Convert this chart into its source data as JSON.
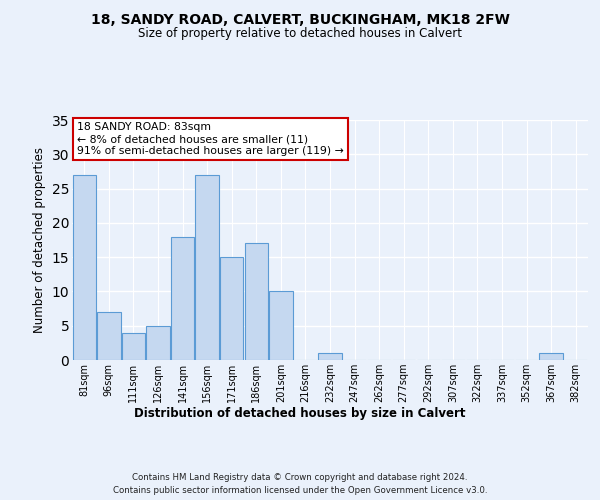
{
  "title1": "18, SANDY ROAD, CALVERT, BUCKINGHAM, MK18 2FW",
  "title2": "Size of property relative to detached houses in Calvert",
  "xlabel": "Distribution of detached houses by size in Calvert",
  "ylabel": "Number of detached properties",
  "categories": [
    "81sqm",
    "96sqm",
    "111sqm",
    "126sqm",
    "141sqm",
    "156sqm",
    "171sqm",
    "186sqm",
    "201sqm",
    "216sqm",
    "232sqm",
    "247sqm",
    "262sqm",
    "277sqm",
    "292sqm",
    "307sqm",
    "322sqm",
    "337sqm",
    "352sqm",
    "367sqm",
    "382sqm"
  ],
  "values": [
    27,
    7,
    4,
    5,
    18,
    27,
    15,
    17,
    10,
    0,
    1,
    0,
    0,
    0,
    0,
    0,
    0,
    0,
    0,
    1,
    0
  ],
  "bar_color": "#c5d8f0",
  "bar_edge_color": "#5b9bd5",
  "annotation_title": "18 SANDY ROAD: 83sqm",
  "annotation_line1": "← 8% of detached houses are smaller (11)",
  "annotation_line2": "91% of semi-detached houses are larger (119) →",
  "ylim": [
    0,
    35
  ],
  "yticks": [
    0,
    5,
    10,
    15,
    20,
    25,
    30,
    35
  ],
  "footer1": "Contains HM Land Registry data © Crown copyright and database right 2024.",
  "footer2": "Contains public sector information licensed under the Open Government Licence v3.0.",
  "bg_color": "#eaf1fb",
  "grid_color": "#ffffff",
  "annotation_box_color": "#ffffff",
  "annotation_box_edge": "#cc0000"
}
